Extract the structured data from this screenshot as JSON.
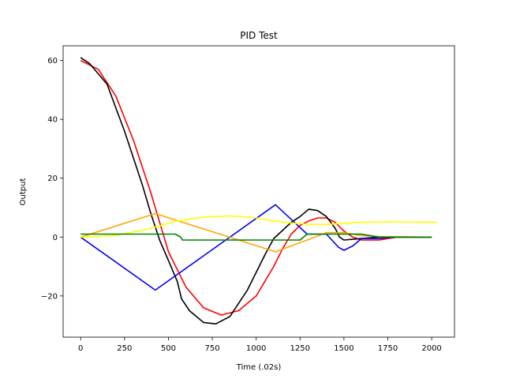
{
  "chart_data": {
    "type": "line",
    "title": "PID Test",
    "xlabel": "Time (.02s)",
    "ylabel": "Output",
    "xlim": [
      -100,
      2130
    ],
    "ylim": [
      -34,
      65
    ],
    "xticks": [
      0,
      250,
      500,
      750,
      1000,
      1250,
      1500,
      1750,
      2000
    ],
    "yticks": [
      -20,
      0,
      20,
      40,
      60
    ],
    "grid": false,
    "series": [
      {
        "color": "#ff0000",
        "points": [
          [
            0,
            60
          ],
          [
            100,
            57
          ],
          [
            200,
            48
          ],
          [
            300,
            33
          ],
          [
            400,
            15
          ],
          [
            500,
            -5
          ],
          [
            600,
            -17
          ],
          [
            700,
            -24
          ],
          [
            800,
            -26.5
          ],
          [
            900,
            -25
          ],
          [
            1000,
            -20
          ],
          [
            1100,
            -10
          ],
          [
            1150,
            -4
          ],
          [
            1200,
            1
          ],
          [
            1250,
            4
          ],
          [
            1300,
            5.5
          ],
          [
            1350,
            6.5
          ],
          [
            1400,
            6.5
          ],
          [
            1450,
            5
          ],
          [
            1500,
            2
          ],
          [
            1550,
            0
          ],
          [
            1600,
            -1
          ],
          [
            1700,
            -1
          ],
          [
            1800,
            0
          ],
          [
            1900,
            0
          ],
          [
            2000,
            0
          ]
        ]
      },
      {
        "color": "#000000",
        "points": [
          [
            0,
            61
          ],
          [
            50,
            59
          ],
          [
            150,
            52
          ],
          [
            250,
            36
          ],
          [
            350,
            18
          ],
          [
            400,
            8
          ],
          [
            450,
            -1
          ],
          [
            500,
            -8
          ],
          [
            550,
            -15
          ],
          [
            575,
            -21
          ],
          [
            620,
            -25
          ],
          [
            700,
            -29
          ],
          [
            770,
            -29.5
          ],
          [
            850,
            -27
          ],
          [
            950,
            -18
          ],
          [
            1050,
            -6
          ],
          [
            1100,
            -0.5
          ],
          [
            1200,
            5
          ],
          [
            1250,
            7
          ],
          [
            1300,
            9.5
          ],
          [
            1350,
            9
          ],
          [
            1400,
            7
          ],
          [
            1450,
            3
          ],
          [
            1475,
            0
          ],
          [
            1500,
            -1
          ],
          [
            1600,
            -0.5
          ],
          [
            1700,
            0
          ],
          [
            1800,
            0
          ],
          [
            2000,
            0
          ]
        ]
      },
      {
        "color": "#0000ff",
        "points": [
          [
            0,
            0
          ],
          [
            425,
            -18
          ],
          [
            1110,
            11
          ],
          [
            1290,
            1
          ],
          [
            1400,
            1
          ],
          [
            1470,
            -3.5
          ],
          [
            1500,
            -4.5
          ],
          [
            1550,
            -3
          ],
          [
            1600,
            -0.5
          ],
          [
            1700,
            -0.5
          ],
          [
            1800,
            0
          ],
          [
            2000,
            0
          ]
        ]
      },
      {
        "color": "#ffa500",
        "points": [
          [
            0,
            0
          ],
          [
            425,
            8
          ],
          [
            1110,
            -5
          ],
          [
            1290,
            -1
          ],
          [
            1400,
            1.5
          ],
          [
            1500,
            1.5
          ],
          [
            1600,
            0.5
          ],
          [
            1700,
            0.2
          ],
          [
            2000,
            0
          ]
        ]
      },
      {
        "color": "#ffff00",
        "points": [
          [
            0,
            0
          ],
          [
            200,
            0.5
          ],
          [
            400,
            3
          ],
          [
            550,
            5.5
          ],
          [
            700,
            6.8
          ],
          [
            850,
            7.2
          ],
          [
            1000,
            6.5
          ],
          [
            1100,
            5.5
          ],
          [
            1200,
            4.8
          ],
          [
            1300,
            4.3
          ],
          [
            1400,
            4.3
          ],
          [
            1500,
            4.7
          ],
          [
            1600,
            5
          ],
          [
            1750,
            5.2
          ],
          [
            2000,
            5
          ],
          [
            2030,
            5
          ]
        ]
      },
      {
        "color": "#008000",
        "points": [
          [
            0,
            1
          ],
          [
            540,
            1
          ],
          [
            570,
            0
          ],
          [
            580,
            -1
          ],
          [
            1250,
            -1
          ],
          [
            1290,
            1
          ],
          [
            1600,
            1
          ],
          [
            1650,
            0.5
          ],
          [
            1700,
            0
          ],
          [
            2000,
            0
          ]
        ]
      }
    ]
  }
}
